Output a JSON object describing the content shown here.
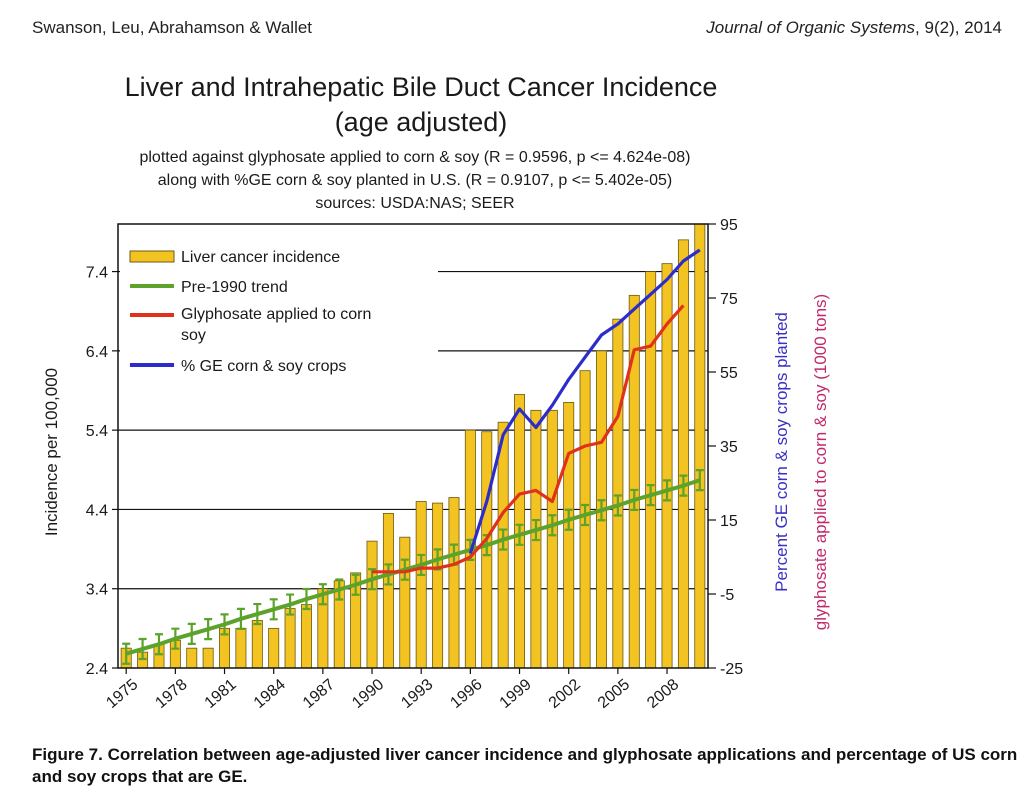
{
  "header": {
    "authors": "Swanson, Leu, Abrahamson & Wallet",
    "journal": "Journal of Organic Systems",
    "volume": ", 9(2), 2014"
  },
  "caption": "Figure 7. Correlation between age-adjusted liver cancer incidence and glyphosate applications and percentage of US corn and soy crops that are GE.",
  "chart_data": {
    "type": "bar",
    "title": "Liver and Intrahepatic Bile Duct Cancer Incidence",
    "title_line2": "(age adjusted)",
    "subtitle": [
      "plotted against glyphosate applied to corn & soy  (R = 0.9596, p <= 4.624e-08)",
      "along with %GE corn & soy planted in U.S. (R = 0.9107, p <= 5.402e-05)",
      "sources: USDA:NAS; SEER"
    ],
    "ylabel_left": "Incidence per 100,000",
    "ylabel_right_1": "Percent GE corn & soy crops planted",
    "ylabel_right_2": "glyphosate applied to corn & soy (1000 tons)",
    "ylim_left": [
      2.4,
      8.0
    ],
    "ylim_right": [
      -25,
      95
    ],
    "left_ticks": [
      "2.4",
      "3.4",
      "4.4",
      "5.4",
      "6.4",
      "7.4"
    ],
    "right_ticks": [
      "-25",
      "-5",
      "15",
      "35",
      "55",
      "75",
      "95"
    ],
    "x_tick_labels": [
      "1975",
      "1978",
      "1981",
      "1984",
      "1987",
      "1990",
      "1993",
      "1996",
      "1999",
      "2002",
      "2005",
      "2008"
    ],
    "years": [
      1975,
      1976,
      1977,
      1978,
      1979,
      1980,
      1981,
      1982,
      1983,
      1984,
      1985,
      1986,
      1987,
      1988,
      1989,
      1990,
      1991,
      1992,
      1993,
      1994,
      1995,
      1996,
      1997,
      1998,
      1999,
      2000,
      2001,
      2002,
      2003,
      2004,
      2005,
      2006,
      2007,
      2008,
      2009,
      2010
    ],
    "legend": [
      "Liver cancer incidence",
      "Pre-1990 trend",
      "Glyphosate applied to corn soy",
      "% GE corn & soy crops"
    ],
    "series": [
      {
        "name": "Liver cancer incidence",
        "axis": "left",
        "values": [
          2.65,
          2.6,
          2.7,
          2.75,
          2.65,
          2.65,
          2.9,
          2.9,
          3.0,
          2.9,
          3.15,
          3.2,
          3.4,
          3.5,
          3.6,
          4.0,
          4.35,
          4.05,
          4.5,
          4.48,
          4.55,
          5.4,
          5.38,
          5.5,
          5.85,
          5.65,
          5.65,
          5.75,
          6.15,
          6.4,
          6.8,
          7.1,
          7.4,
          7.5,
          7.8,
          8.0
        ]
      },
      {
        "name": "Pre-1990 trend",
        "axis": "left",
        "values": [
          2.58,
          2.64,
          2.7,
          2.77,
          2.83,
          2.89,
          2.95,
          3.02,
          3.08,
          3.14,
          3.2,
          3.27,
          3.33,
          3.39,
          3.45,
          3.52,
          3.58,
          3.64,
          3.7,
          3.77,
          3.83,
          3.89,
          3.95,
          4.02,
          4.08,
          4.14,
          4.2,
          4.27,
          4.33,
          4.39,
          4.45,
          4.52,
          4.58,
          4.64,
          4.7,
          4.77
        ]
      },
      {
        "name": "Glyphosate applied to corn soy",
        "axis": "right",
        "start_year": 1990,
        "values": [
          1,
          1,
          1,
          2,
          2,
          3,
          5,
          10,
          17,
          22,
          23,
          20,
          33,
          35,
          36,
          43,
          61,
          62,
          68,
          73
        ]
      },
      {
        "name": "% GE corn & soy crops",
        "axis": "right",
        "start_year": 1996,
        "values": [
          6,
          20,
          38,
          45,
          40,
          46,
          53,
          59,
          65,
          68,
          72,
          76,
          80,
          85,
          88
        ]
      }
    ],
    "colors": {
      "bar_fill": "#f3c321",
      "bar_stroke": "#6b5a12",
      "trend": "#5da22b",
      "glyphosate": "#e0311b",
      "ge": "#2c2ccb",
      "right_label_1": "#3a30c4",
      "right_label_2": "#c02a6c"
    }
  }
}
